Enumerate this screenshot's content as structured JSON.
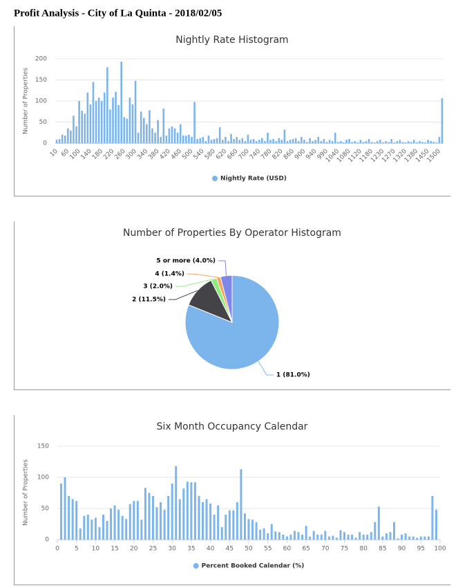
{
  "title": "Profit Analysis - City of La Quinta - 2018/02/05",
  "chart_data": [
    {
      "type": "bar",
      "title": "Nightly Rate Histogram",
      "ylabel": "Number of Properties",
      "categories": [
        "10",
        null,
        null,
        null,
        "60",
        null,
        null,
        null,
        "100",
        null,
        null,
        null,
        "140",
        null,
        null,
        null,
        "180",
        null,
        null,
        null,
        "220",
        null,
        null,
        null,
        "260",
        null,
        null,
        null,
        "300",
        null,
        null,
        null,
        "340",
        null,
        null,
        null,
        "380",
        null,
        null,
        null,
        "420",
        null,
        null,
        null,
        "460",
        null,
        null,
        null,
        "500",
        null,
        null,
        null,
        "540",
        null,
        null,
        null,
        "580",
        null,
        null,
        null,
        "620",
        null,
        null,
        null,
        "660",
        null,
        null,
        null,
        "700",
        null,
        null,
        null,
        "740",
        null,
        null,
        null,
        "780",
        null,
        null,
        null,
        "820",
        null,
        null,
        null,
        "860",
        null,
        null,
        null,
        "900",
        null,
        null,
        null,
        "940",
        null,
        null,
        null,
        "990",
        null,
        null,
        null,
        "1040",
        null,
        null,
        null,
        "1080",
        null,
        null,
        null,
        "1120",
        null,
        null,
        null,
        "1180",
        null,
        null,
        null,
        "1230",
        null,
        null,
        null,
        "1270",
        null,
        null,
        null,
        "1320",
        null,
        null,
        null,
        "1380",
        null,
        null,
        null,
        "1450",
        null,
        null,
        null,
        "1500",
        null
      ],
      "series": [
        {
          "name": "Nightly Rate (USD)",
          "color": "#7cb5ec",
          "values": [
            8,
            10,
            20,
            18,
            35,
            30,
            65,
            40,
            100,
            77,
            70,
            120,
            92,
            145,
            100,
            108,
            100,
            120,
            180,
            80,
            108,
            122,
            90,
            193,
            62,
            58,
            108,
            92,
            148,
            25,
            75,
            60,
            45,
            78,
            35,
            25,
            55,
            15,
            82,
            18,
            35,
            40,
            35,
            25,
            45,
            18,
            18,
            20,
            15,
            98,
            10,
            12,
            15,
            5,
            18,
            8,
            10,
            12,
            38,
            8,
            15,
            5,
            22,
            10,
            15,
            8,
            12,
            5,
            20,
            8,
            10,
            5,
            8,
            12,
            5,
            25,
            8,
            10,
            5,
            12,
            8,
            32,
            5,
            8,
            10,
            12,
            5,
            15,
            8,
            3,
            12,
            5,
            8,
            15,
            5,
            10,
            3,
            8,
            5,
            25,
            3,
            5,
            2,
            8,
            10,
            3,
            5,
            2,
            8,
            3,
            5,
            10,
            3,
            2,
            5,
            8,
            2,
            5,
            3,
            10,
            2,
            5,
            8,
            3,
            2,
            5,
            3,
            8,
            2,
            5,
            3,
            2,
            8,
            5,
            3,
            2,
            15,
            107
          ]
        }
      ],
      "ylim": [
        0,
        200
      ],
      "yticks": [
        0,
        50,
        100,
        150,
        200
      ],
      "grid": true,
      "legend": "bottom"
    },
    {
      "type": "pie",
      "title": "Number of Properties By Operator Histogram",
      "categories": [
        "1",
        "2",
        "3",
        "4",
        "5 or more"
      ],
      "values": [
        81.0,
        11.5,
        2.0,
        1.4,
        4.0
      ],
      "value_labels": [
        "1 (81.0%)",
        "2 (11.5%)",
        "3 (2.0%)",
        "4 (1.4%)",
        "5 or more (4.0%)"
      ],
      "colors": [
        "#7cb5ec",
        "#434348",
        "#90ed7d",
        "#f7a35c",
        "#8085e9"
      ]
    },
    {
      "type": "histogram",
      "title": "Six Month Occupancy Calendar",
      "ylabel": "Number of Properties",
      "x": [
        1,
        2,
        3,
        4,
        5,
        6,
        7,
        8,
        9,
        10,
        11,
        12,
        13,
        14,
        15,
        16,
        17,
        18,
        19,
        20,
        21,
        22,
        23,
        24,
        25,
        26,
        27,
        28,
        29,
        30,
        31,
        32,
        33,
        34,
        35,
        36,
        37,
        38,
        39,
        40,
        41,
        42,
        43,
        44,
        45,
        46,
        47,
        48,
        49,
        50,
        51,
        52,
        53,
        54,
        55,
        56,
        57,
        58,
        59,
        60,
        61,
        62,
        63,
        64,
        65,
        66,
        67,
        68,
        69,
        70,
        71,
        72,
        73,
        74,
        75,
        76,
        77,
        78,
        79,
        80,
        81,
        82,
        83,
        84,
        85,
        86,
        87,
        88,
        89,
        90,
        91,
        92,
        93,
        94,
        95,
        96,
        97,
        98,
        99
      ],
      "series": [
        {
          "name": "Percent Booked Calendar (%)",
          "color": "#7cb5ec",
          "values": [
            90,
            100,
            70,
            65,
            62,
            18,
            38,
            40,
            32,
            35,
            20,
            40,
            30,
            50,
            55,
            48,
            38,
            33,
            57,
            62,
            62,
            32,
            83,
            75,
            70,
            52,
            60,
            48,
            70,
            90,
            118,
            65,
            82,
            93,
            92,
            92,
            70,
            60,
            65,
            58,
            40,
            55,
            20,
            40,
            47,
            47,
            60,
            113,
            42,
            33,
            32,
            28,
            16,
            18,
            10,
            25,
            13,
            12,
            8,
            5,
            8,
            14,
            12,
            8,
            22,
            5,
            14,
            8,
            8,
            14,
            5,
            6,
            3,
            15,
            12,
            8,
            8,
            3,
            12,
            8,
            8,
            12,
            28,
            53,
            5,
            10,
            12,
            28,
            2,
            8,
            10,
            5,
            5,
            3,
            5,
            5,
            5,
            70,
            48
          ]
        }
      ],
      "xlim": [
        0,
        100
      ],
      "xticks": [
        0,
        5,
        10,
        15,
        20,
        25,
        30,
        35,
        40,
        45,
        50,
        55,
        60,
        65,
        70,
        75,
        80,
        85,
        90,
        95,
        100
      ],
      "ylim": [
        0,
        150
      ],
      "yticks": [
        0,
        50,
        100,
        150
      ],
      "grid": true,
      "legend": "bottom"
    }
  ]
}
